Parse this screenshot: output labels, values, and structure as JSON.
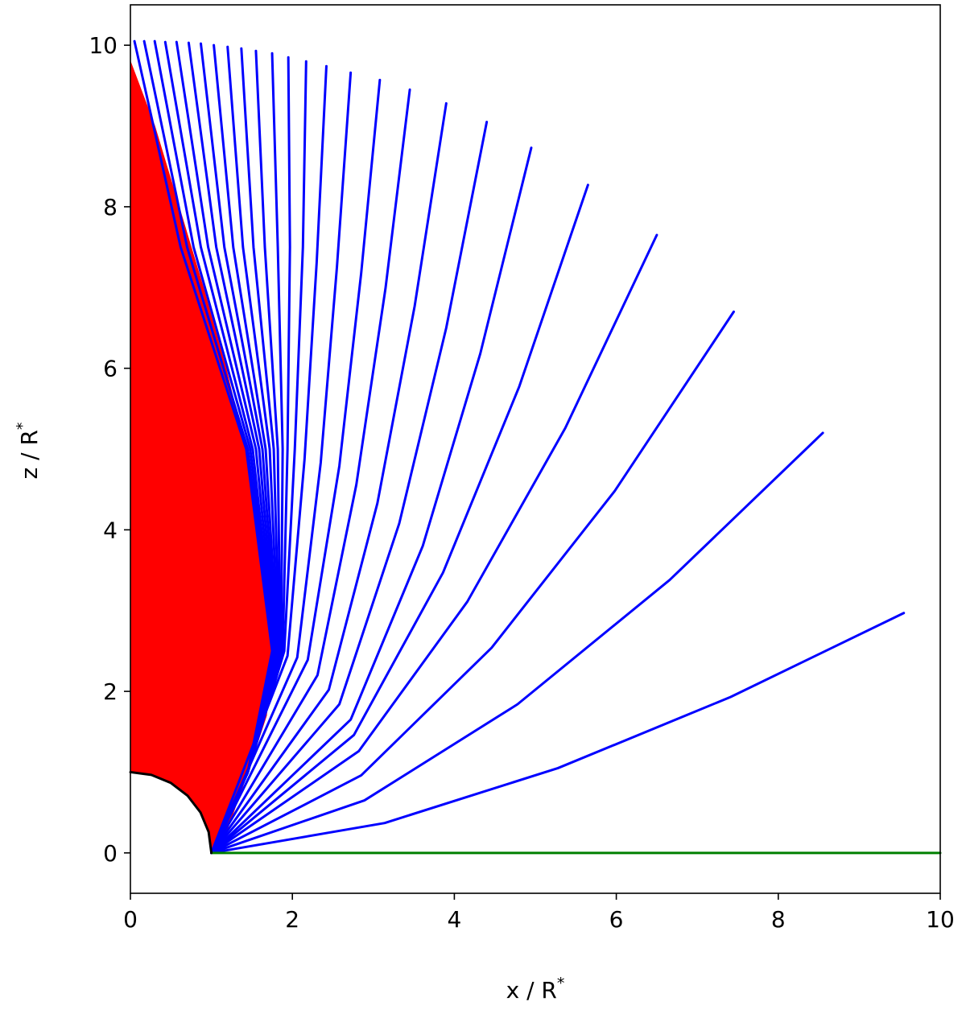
{
  "chart_data": {
    "type": "line",
    "xlabel": {
      "text": "x / R",
      "superscript": "*"
    },
    "ylabel": {
      "text": "z / R",
      "superscript": "*"
    },
    "xlim": [
      0,
      10
    ],
    "ylim": [
      -0.5,
      10.5
    ],
    "xticks": [
      0,
      2,
      4,
      6,
      8,
      10
    ],
    "yticks": [
      0,
      2,
      4,
      6,
      8,
      10
    ],
    "series": [
      {
        "color": "#ff0000",
        "fill": true,
        "x": [
          1,
          1.2,
          1.45,
          1.68,
          1.75,
          1.72,
          1.6,
          1.42,
          1.18,
          0.9,
          0.6,
          0.3,
          0,
          0,
          0.259,
          0.5,
          0.707,
          0.866,
          0.966
        ],
        "values": [
          0,
          0.3,
          1.0,
          1.7,
          2.5,
          3.0,
          4.0,
          5.0,
          6.0,
          7.0,
          8.0,
          9.0,
          9.8,
          1,
          0.966,
          0.866,
          0.707,
          0.5,
          0.259
        ]
      },
      {
        "color": "#0000ff",
        "x": [
          1,
          3.14,
          5.28,
          7.41,
          9.55
        ],
        "values": [
          0,
          0.37,
          1.05,
          1.93,
          2.97
        ]
      },
      {
        "color": "#0000ff",
        "x": [
          1,
          2.89,
          4.78,
          6.66,
          8.55
        ],
        "values": [
          0,
          0.65,
          1.84,
          3.38,
          5.2
        ]
      },
      {
        "color": "#0000ff",
        "x": [
          1,
          2.85,
          4.46,
          5.98,
          7.45
        ],
        "values": [
          0,
          0.96,
          2.54,
          4.48,
          6.7
        ]
      },
      {
        "color": "#0000ff",
        "x": [
          1,
          2.82,
          4.16,
          5.37,
          6.5
        ],
        "values": [
          0,
          1.26,
          3.11,
          5.26,
          7.65
        ]
      },
      {
        "color": "#0000ff",
        "x": [
          1,
          2.76,
          3.86,
          4.8,
          5.65
        ],
        "values": [
          0,
          1.46,
          3.47,
          5.77,
          8.27
        ]
      },
      {
        "color": "#0000ff",
        "x": [
          1,
          2.72,
          3.61,
          4.32,
          4.95
        ],
        "values": [
          0,
          1.65,
          3.8,
          6.18,
          8.73
        ]
      },
      {
        "color": "#0000ff",
        "x": [
          1,
          2.58,
          3.32,
          3.9,
          4.4
        ],
        "values": [
          0,
          1.84,
          4.08,
          6.5,
          9.05
        ]
      },
      {
        "color": "#0000ff",
        "x": [
          1,
          2.45,
          3.05,
          3.51,
          3.9
        ],
        "values": [
          0,
          2.02,
          4.33,
          6.77,
          9.28
        ]
      },
      {
        "color": "#0000ff",
        "x": [
          1,
          2.31,
          2.79,
          3.15,
          3.45
        ],
        "values": [
          0,
          2.2,
          4.56,
          6.99,
          9.45
        ]
      },
      {
        "color": "#0000ff",
        "x": [
          1,
          2.19,
          2.58,
          2.85,
          3.08
        ],
        "values": [
          0,
          2.39,
          4.79,
          7.18,
          9.57
        ]
      },
      {
        "color": "#0000ff",
        "x": [
          1,
          2.06,
          2.35,
          2.55,
          2.72
        ],
        "values": [
          0,
          2.42,
          4.83,
          7.25,
          9.66
        ]
      },
      {
        "color": "#0000ff",
        "x": [
          1,
          1.94,
          2.15,
          2.3,
          2.42
        ],
        "values": [
          0,
          2.44,
          4.87,
          7.31,
          9.74
        ]
      },
      {
        "color": "#0000ff",
        "x": [
          1,
          1.45,
          1.9,
          2.03,
          2.13,
          2.17
        ],
        "values": [
          0,
          1,
          2.5,
          5,
          7.5,
          9.8
        ]
      },
      {
        "color": "#0000ff",
        "x": [
          1,
          1.45,
          1.88,
          1.94,
          1.97,
          1.95
        ],
        "values": [
          0,
          1,
          2.5,
          5,
          7.5,
          9.85
        ]
      },
      {
        "color": "#0000ff",
        "x": [
          1,
          1.45,
          1.86,
          1.88,
          1.82,
          1.75
        ],
        "values": [
          0,
          1,
          2.5,
          5,
          7.5,
          9.9
        ]
      },
      {
        "color": "#0000ff",
        "x": [
          1,
          1.45,
          1.85,
          1.82,
          1.66,
          1.55
        ],
        "values": [
          0,
          1,
          2.5,
          5,
          7.5,
          9.93
        ]
      },
      {
        "color": "#0000ff",
        "x": [
          1,
          1.45,
          1.84,
          1.77,
          1.52,
          1.37
        ],
        "values": [
          0,
          1,
          2.5,
          5,
          7.5,
          9.96
        ]
      },
      {
        "color": "#0000ff",
        "x": [
          1,
          1.45,
          1.83,
          1.72,
          1.39,
          1.2
        ],
        "values": [
          0,
          1,
          2.5,
          5,
          7.5,
          9.98
        ]
      },
      {
        "color": "#0000ff",
        "x": [
          1,
          1.45,
          1.82,
          1.67,
          1.27,
          1.03
        ],
        "values": [
          0,
          1,
          2.5,
          5,
          7.5,
          10.0
        ]
      },
      {
        "color": "#0000ff",
        "x": [
          1,
          1.45,
          1.81,
          1.63,
          1.16,
          0.87
        ],
        "values": [
          0,
          1,
          2.5,
          5,
          7.5,
          10.02
        ]
      },
      {
        "color": "#0000ff",
        "x": [
          1,
          1.45,
          1.8,
          1.59,
          1.06,
          0.72
        ],
        "values": [
          0,
          1,
          2.5,
          5,
          7.5,
          10.03
        ]
      },
      {
        "color": "#0000ff",
        "x": [
          1,
          1.45,
          1.79,
          1.55,
          0.96,
          0.57
        ],
        "values": [
          0,
          1,
          2.5,
          5,
          7.5,
          10.04
        ]
      },
      {
        "color": "#0000ff",
        "x": [
          1,
          1.45,
          1.78,
          1.51,
          0.87,
          0.43
        ],
        "values": [
          0,
          1,
          2.5,
          5,
          7.5,
          10.04
        ]
      },
      {
        "color": "#0000ff",
        "x": [
          1,
          1.45,
          1.77,
          1.48,
          0.78,
          0.3
        ],
        "values": [
          0,
          1,
          2.5,
          5,
          7.5,
          10.05
        ]
      },
      {
        "color": "#0000ff",
        "x": [
          1,
          1.45,
          1.76,
          1.45,
          0.7,
          0.17
        ],
        "values": [
          0,
          1,
          2.5,
          5,
          7.5,
          10.05
        ]
      },
      {
        "color": "#0000ff",
        "x": [
          1,
          1.45,
          1.75,
          1.43,
          0.62,
          0.05
        ],
        "values": [
          0,
          1,
          2.5,
          5,
          7.5,
          10.05
        ]
      },
      {
        "color": "#008000",
        "x": [
          1,
          10
        ],
        "values": [
          0,
          0
        ]
      },
      {
        "color": "#000000",
        "x": [
          1,
          0.966,
          0.866,
          0.707,
          0.5,
          0.259,
          0
        ],
        "values": [
          0,
          0.259,
          0.5,
          0.707,
          0.866,
          0.966,
          1
        ]
      }
    ]
  }
}
